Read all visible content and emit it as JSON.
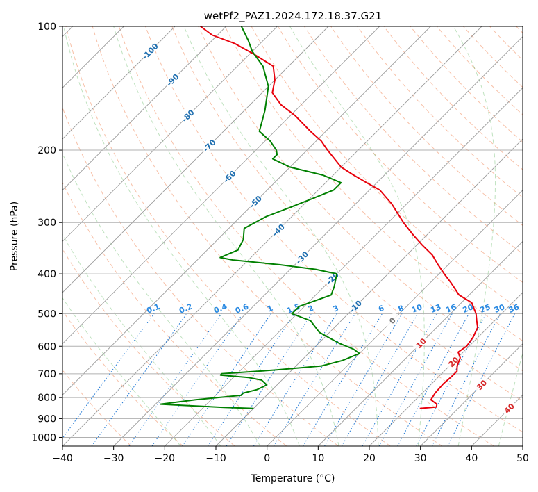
{
  "chart_data": {
    "type": "line",
    "title": "wetPf2_PAZ1.2024.172.18.37.G21",
    "xlabel": "Temperature (°C)",
    "ylabel": "Pressure (hPa)",
    "xlim": [
      -40,
      50
    ],
    "ylim": [
      1050,
      100
    ],
    "y_scale": "log",
    "skew_t": true,
    "x_ticks": [
      "−40",
      "−30",
      "−20",
      "−10",
      "0",
      "10",
      "20",
      "30",
      "40",
      "50"
    ],
    "y_ticks": [
      "100",
      "200",
      "300",
      "400",
      "500",
      "600",
      "700",
      "800",
      "900",
      "1000"
    ],
    "y_tick_values": [
      100,
      200,
      300,
      400,
      500,
      600,
      700,
      800,
      900,
      1000
    ],
    "grid": true,
    "isotherm_labels": [
      "-100",
      "-90",
      "-80",
      "-70",
      "-60",
      "-50",
      "-40",
      "-30",
      "-20",
      "-10",
      "0",
      "10",
      "20",
      "30",
      "40"
    ],
    "isotherm_values": [
      -100,
      -90,
      -80,
      -70,
      -60,
      -50,
      -40,
      -30,
      -20,
      -10,
      0,
      10,
      20,
      30,
      40
    ],
    "mixing_ratio_labels": [
      "0.1",
      "0.2",
      "0.4",
      "0.6",
      "1",
      "1.5",
      "2",
      "3",
      "4",
      "6",
      "8",
      "10",
      "13",
      "16",
      "20",
      "25",
      "30",
      "36"
    ],
    "mixing_ratio_values": [
      0.1,
      0.2,
      0.4,
      0.6,
      1,
      1.5,
      2,
      3,
      4,
      6,
      8,
      10,
      13,
      16,
      20,
      25,
      30,
      36
    ],
    "series": [
      {
        "color": "#e8000b",
        "points": [
          [
            850,
            22.5
          ],
          [
            843,
            25.5
          ],
          [
            830,
            25
          ],
          [
            810,
            23
          ],
          [
            780,
            22.5
          ],
          [
            740,
            22.3
          ],
          [
            710,
            22.5
          ],
          [
            690,
            22.5
          ],
          [
            670,
            21.5
          ],
          [
            640,
            20.5
          ],
          [
            620,
            19
          ],
          [
            600,
            19.5
          ],
          [
            570,
            19
          ],
          [
            540,
            18
          ],
          [
            520,
            16.5
          ],
          [
            500,
            15
          ],
          [
            470,
            12
          ],
          [
            450,
            8
          ],
          [
            420,
            4
          ],
          [
            400,
            1
          ],
          [
            380,
            -2
          ],
          [
            360,
            -5
          ],
          [
            340,
            -9
          ],
          [
            320,
            -13
          ],
          [
            300,
            -17
          ],
          [
            270,
            -23
          ],
          [
            250,
            -28
          ],
          [
            240,
            -32
          ],
          [
            230,
            -36
          ],
          [
            220,
            -40
          ],
          [
            200,
            -46
          ],
          [
            190,
            -49
          ],
          [
            180,
            -53
          ],
          [
            165,
            -59
          ],
          [
            155,
            -64
          ],
          [
            145,
            -68
          ],
          [
            135,
            -70
          ],
          [
            125,
            -73
          ],
          [
            117,
            -79
          ],
          [
            110,
            -85
          ],
          [
            105,
            -91
          ],
          [
            100,
            -95
          ]
        ]
      },
      {
        "color": "#008000",
        "points": [
          [
            850,
            -10
          ],
          [
            845,
            -16
          ],
          [
            835,
            -25
          ],
          [
            830,
            -29
          ],
          [
            810,
            -23
          ],
          [
            790,
            -15
          ],
          [
            780,
            -15
          ],
          [
            765,
            -13
          ],
          [
            745,
            -12
          ],
          [
            725,
            -14
          ],
          [
            715,
            -17
          ],
          [
            705,
            -23
          ],
          [
            700,
            -23
          ],
          [
            685,
            -13
          ],
          [
            670,
            -5
          ],
          [
            650,
            -2
          ],
          [
            625,
            0
          ],
          [
            610,
            -2
          ],
          [
            590,
            -6
          ],
          [
            555,
            -12
          ],
          [
            520,
            -16
          ],
          [
            500,
            -21
          ],
          [
            480,
            -21
          ],
          [
            450,
            -17
          ],
          [
            430,
            -18
          ],
          [
            400,
            -20
          ],
          [
            390,
            -25
          ],
          [
            380,
            -33
          ],
          [
            370,
            -43
          ],
          [
            365,
            -46
          ],
          [
            350,
            -44
          ],
          [
            330,
            -45
          ],
          [
            310,
            -47
          ],
          [
            290,
            -45
          ],
          [
            275,
            -42
          ],
          [
            260,
            -39
          ],
          [
            250,
            -37
          ],
          [
            240,
            -37
          ],
          [
            230,
            -42
          ],
          [
            220,
            -50
          ],
          [
            210,
            -55
          ],
          [
            205,
            -55
          ],
          [
            200,
            -56
          ],
          [
            190,
            -59
          ],
          [
            180,
            -63
          ],
          [
            160,
            -66
          ],
          [
            140,
            -70
          ],
          [
            125,
            -75
          ],
          [
            115,
            -80
          ],
          [
            108,
            -83
          ],
          [
            100,
            -87
          ]
        ]
      }
    ]
  }
}
